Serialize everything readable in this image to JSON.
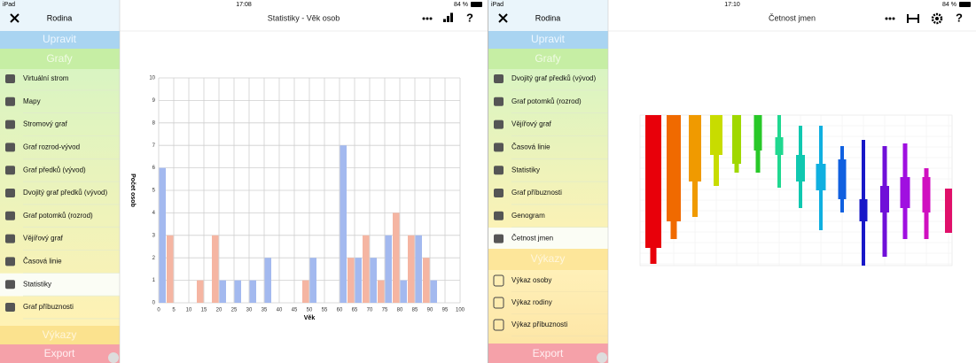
{
  "left": {
    "status": {
      "device": "iPad",
      "time": "17:08",
      "battery": "84 %"
    },
    "sidebar": {
      "title": "Rodina",
      "edit": "Upravit",
      "graphs": "Grafy",
      "items": [
        "Virtuální strom",
        "Mapy",
        "Stromový graf",
        "Graf rozrod-vývod",
        "Graf předků (vývod)",
        "Dvojitý graf předků (vývod)",
        "Graf potomků (rozrod)",
        "Vějířový graf",
        "Časová linie",
        "Statistiky",
        "Graf příbuznosti"
      ],
      "reports": "Výkazy",
      "export": "Export"
    },
    "header": {
      "title": "Statistiky - Věk osob",
      "help": "?"
    }
  },
  "chart_data": {
    "type": "bar",
    "x": [
      0,
      5,
      10,
      15,
      20,
      25,
      30,
      35,
      40,
      45,
      50,
      55,
      60,
      65,
      70,
      75,
      80,
      85,
      90,
      95
    ],
    "series": [
      {
        "color": "#a3b9ef",
        "values": [
          6,
          0,
          0,
          0,
          1,
          1,
          1,
          2,
          0,
          0,
          2,
          0,
          7,
          2,
          2,
          3,
          1,
          3,
          1,
          0
        ]
      },
      {
        "color": "#f5b5a2",
        "values": [
          3,
          0,
          1,
          3,
          0,
          0,
          0,
          0,
          0,
          1,
          0,
          0,
          2,
          3,
          1,
          4,
          3,
          2,
          0,
          0
        ]
      }
    ],
    "xlim": [
      0,
      100
    ],
    "xticks": [
      0,
      5,
      10,
      15,
      20,
      25,
      30,
      35,
      40,
      45,
      50,
      55,
      60,
      65,
      70,
      75,
      80,
      85,
      90,
      95,
      100
    ],
    "ylim": [
      0,
      10
    ],
    "yticks": [
      0,
      1,
      2,
      3,
      4,
      5,
      6,
      7,
      8,
      9,
      10
    ],
    "x_label": "Věk",
    "y_label": "Počet osob",
    "grid": true
  },
  "right": {
    "status": {
      "device": "iPad",
      "time": "17:10",
      "battery": "84 %"
    },
    "sidebar": {
      "title": "Rodina",
      "edit": "Upravit",
      "graphs": "Grafy",
      "items": [
        "Dvojitý graf předků (vývod)",
        "Graf potomků (rozrod)",
        "Vějířový graf",
        "Časová linie",
        "Statistiky",
        "Graf příbuznosti",
        "Genogram",
        "Četnost jmen"
      ],
      "reports": "Výkazy",
      "report_items": [
        "Výkaz osoby",
        "Výkaz rodiny",
        "Výkaz příbuznosti"
      ],
      "export": "Export"
    },
    "header": {
      "title": "Četnost jmen",
      "help": "?"
    }
  }
}
